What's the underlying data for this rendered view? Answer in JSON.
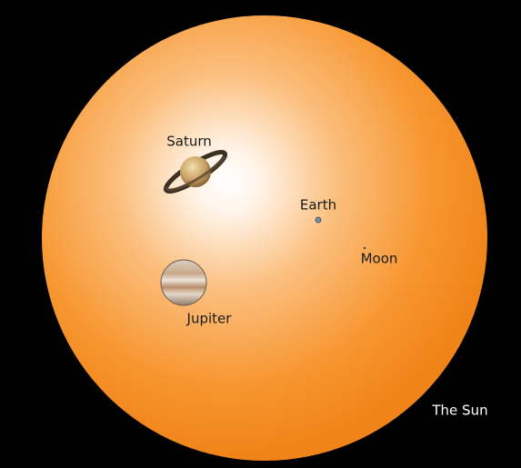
{
  "bodies": [
    {
      "label": "Saturn"
    },
    {
      "label": "Earth"
    },
    {
      "label": "Moon"
    },
    {
      "label": "Jupiter"
    }
  ],
  "sun": {
    "label": "The Sun"
  }
}
